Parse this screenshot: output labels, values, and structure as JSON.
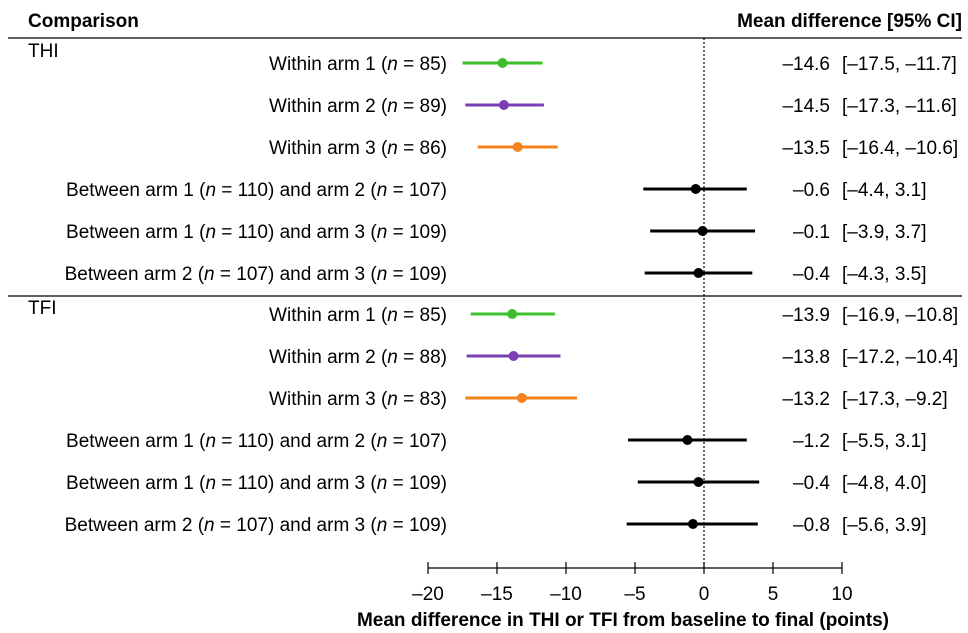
{
  "chart_data": {
    "type": "forest",
    "header_left": "Comparison",
    "header_right": "Mean difference [95% CI]",
    "xlabel": "Mean difference in THI or TFI from baseline to final (points)",
    "xlim": [
      -20,
      10
    ],
    "xticks": [
      "–20",
      "–15",
      "–10",
      "–5",
      "0",
      "5",
      "10"
    ],
    "colors": {
      "arm1": "#3bbf2b",
      "arm2": "#7b3fb5",
      "arm3": "#f5821f",
      "between": "#000000"
    },
    "groups": [
      {
        "name": "THI",
        "rows": [
          {
            "label_parts": [
              "Within arm 1 (",
              "n",
              " = 85)"
            ],
            "est": -14.6,
            "lo": -17.5,
            "hi": -11.7,
            "color": "arm1",
            "value_text": "–14.6",
            "ci_text": "[–17.5, –11.7]"
          },
          {
            "label_parts": [
              "Within arm 2 (",
              "n",
              " = 89)"
            ],
            "est": -14.5,
            "lo": -17.3,
            "hi": -11.6,
            "color": "arm2",
            "value_text": "–14.5",
            "ci_text": "[–17.3, –11.6]"
          },
          {
            "label_parts": [
              "Within arm 3 (",
              "n",
              " = 86)"
            ],
            "est": -13.5,
            "lo": -16.4,
            "hi": -10.6,
            "color": "arm3",
            "value_text": "–13.5",
            "ci_text": "[–16.4, –10.6]"
          },
          {
            "label_parts": [
              "Between arm 1 (",
              "n",
              " = 110) and arm 2 (",
              "n",
              " = 107)"
            ],
            "est": -0.6,
            "lo": -4.4,
            "hi": 3.1,
            "color": "between",
            "value_text": "–0.6",
            "ci_text": "[–4.4, 3.1]"
          },
          {
            "label_parts": [
              "Between arm 1 (",
              "n",
              " = 110) and arm 3 (",
              "n",
              " = 109)"
            ],
            "est": -0.1,
            "lo": -3.9,
            "hi": 3.7,
            "color": "between",
            "value_text": "–0.1",
            "ci_text": "[–3.9, 3.7]"
          },
          {
            "label_parts": [
              "Between arm 2 (",
              "n",
              " = 107) and arm 3 (",
              "n",
              " = 109)"
            ],
            "est": -0.4,
            "lo": -4.3,
            "hi": 3.5,
            "color": "between",
            "value_text": "–0.4",
            "ci_text": "[–4.3, 3.5]"
          }
        ]
      },
      {
        "name": "TFI",
        "rows": [
          {
            "label_parts": [
              "Within arm 1 (",
              "n",
              " = 85)"
            ],
            "est": -13.9,
            "lo": -16.9,
            "hi": -10.8,
            "color": "arm1",
            "value_text": "–13.9",
            "ci_text": "[–16.9, –10.8]"
          },
          {
            "label_parts": [
              "Within arm 2 (",
              "n",
              " = 88)"
            ],
            "est": -13.8,
            "lo": -17.2,
            "hi": -10.4,
            "color": "arm2",
            "value_text": "–13.8",
            "ci_text": "[–17.2, –10.4]"
          },
          {
            "label_parts": [
              "Within arm 3 (",
              "n",
              " = 83)"
            ],
            "est": -13.2,
            "lo": -17.3,
            "hi": -9.2,
            "color": "arm3",
            "value_text": "–13.2",
            "ci_text": "[–17.3, –9.2]"
          },
          {
            "label_parts": [
              "Between arm 1 (",
              "n",
              " = 110) and arm 2 (",
              "n",
              " = 107)"
            ],
            "est": -1.2,
            "lo": -5.5,
            "hi": 3.1,
            "color": "between",
            "value_text": "–1.2",
            "ci_text": "[–5.5, 3.1]"
          },
          {
            "label_parts": [
              "Between arm 1 (",
              "n",
              " = 110) and arm 3 (",
              "n",
              " = 109)"
            ],
            "est": -0.4,
            "lo": -4.8,
            "hi": 4.0,
            "color": "between",
            "value_text": "–0.4",
            "ci_text": "[–4.8, 4.0]"
          },
          {
            "label_parts": [
              "Between arm 2 (",
              "n",
              " = 107) and arm 3 (",
              "n",
              " = 109)"
            ],
            "est": -0.8,
            "lo": -5.6,
            "hi": 3.9,
            "color": "between",
            "value_text": "–0.8",
            "ci_text": "[–5.6, 3.9]"
          }
        ]
      }
    ]
  }
}
